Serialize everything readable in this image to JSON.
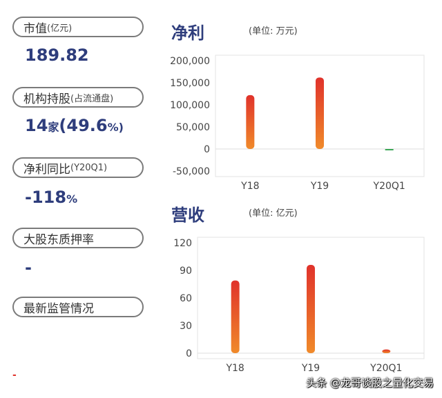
{
  "metrics": {
    "market_cap": {
      "label": "市值",
      "sub": "(亿元)",
      "value": "189.82"
    },
    "institution": {
      "label": "机构持股",
      "sub": "(占流通盘)",
      "value_main": "14",
      "value_unit": "家",
      "value_pct": "(49.6",
      "value_pct_unit": "%)"
    },
    "profit_yoy": {
      "label": "净利同比",
      "sub": "(Y20Q1)",
      "value": "-118",
      "value_unit": "%"
    },
    "pledge": {
      "label": "大股东质押率",
      "value": "-"
    },
    "regulation": {
      "label": "最新监管情况",
      "value": "-"
    }
  },
  "footer": "头条 @龙哥谈股之量化交易",
  "colors": {
    "bar_top": "#e0322b",
    "bar_bottom": "#f08a2a",
    "bar_negative": "#3aa655",
    "title": "#2e3d7c"
  },
  "chart_data": [
    {
      "type": "bar",
      "title": "净利",
      "unit": "(单位: 万元)",
      "categories": [
        "Y18",
        "Y19",
        "Y20Q1"
      ],
      "values": [
        122000,
        162000,
        -3000
      ],
      "ylim": [
        -50000,
        200000
      ],
      "yticks": [
        "200,000",
        "150,000",
        "100,000",
        "50,000",
        "0",
        "-50,000"
      ],
      "ytick_values": [
        200000,
        150000,
        100000,
        50000,
        0,
        -50000
      ]
    },
    {
      "type": "bar",
      "title": "营收",
      "unit": "(单位: 亿元)",
      "categories": [
        "Y18",
        "Y19",
        "Y20Q1"
      ],
      "values": [
        79,
        96,
        4
      ],
      "ylim": [
        0,
        120
      ],
      "yticks": [
        "120",
        "90",
        "60",
        "30",
        "0"
      ],
      "ytick_values": [
        120,
        90,
        60,
        30,
        0
      ]
    }
  ]
}
